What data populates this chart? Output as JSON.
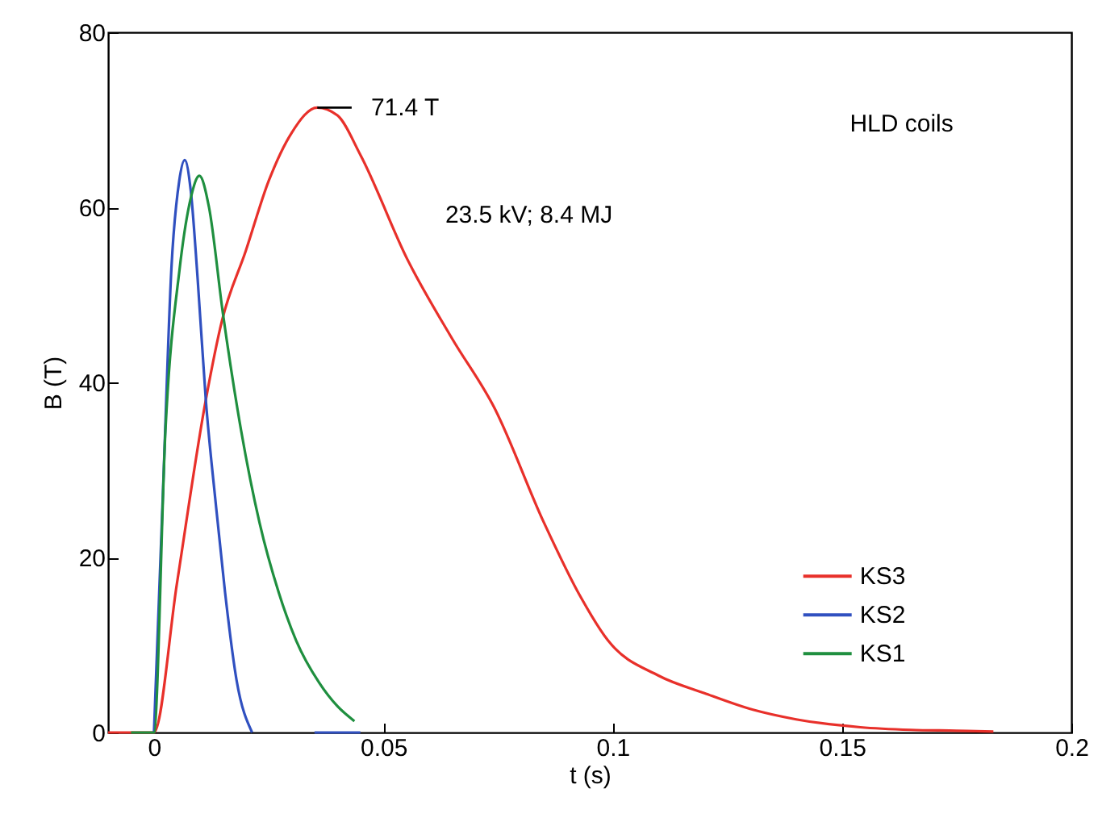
{
  "chart_data": {
    "type": "line",
    "xlabel": "t (s)",
    "ylabel": "B (T)",
    "xlim": [
      -0.01,
      0.2
    ],
    "ylim": [
      0,
      80
    ],
    "xticks": [
      0,
      0.05,
      0.1,
      0.15,
      0.2
    ],
    "yticks": [
      0,
      20,
      40,
      60,
      80
    ],
    "legend": "bottom right",
    "marker": "none",
    "line_style": "solid",
    "annotations": [
      {
        "text": "71.4 T",
        "x": 0.0356,
        "y": 71.4
      },
      "HLD coils",
      "23.5 kV; 8.4 MJ"
    ],
    "series": [
      {
        "name": "KS3",
        "color": "#e8302a",
        "x": [
          -0.01,
          0,
          0.005,
          0.0113,
          0.0148,
          0.02,
          0.025,
          0.03,
          0.0356,
          0.04,
          0.045,
          0.0553,
          0.065,
          0.0743,
          0.085,
          0.093,
          0.099,
          0.11,
          0.12,
          0.1306,
          0.14,
          0.154,
          0.165,
          0.175,
          0.183
        ],
        "values": [
          0,
          0,
          17,
          38,
          47,
          55,
          63,
          68.5,
          71.4,
          70.5,
          66,
          54,
          45,
          37,
          24,
          15.5,
          10.5,
          6.5,
          4.5,
          2.6,
          1.5,
          0.6,
          0.3,
          0.2,
          0.1
        ]
      },
      {
        "name": "KS2",
        "color": "#3050c0",
        "x": [
          0,
          0.002,
          0.0038,
          0.0055,
          0.0067,
          0.008,
          0.0095,
          0.0113,
          0.0135,
          0.0155,
          0.018,
          0.0214,
          null,
          0.035,
          0.045
        ],
        "values": [
          0,
          28,
          53,
          63,
          65.4,
          62,
          52,
          38,
          26,
          16,
          6,
          0,
          null,
          0,
          0
        ]
      },
      {
        "name": "KS1",
        "color": "#1f8f3f",
        "x": [
          -0.005,
          0,
          0.0025,
          0.0056,
          0.008,
          0.0099,
          0.012,
          0.015,
          0.019,
          0.023,
          0.0272,
          0.031,
          0.036,
          0.04,
          0.0437
        ],
        "values": [
          0,
          0,
          34.5,
          53,
          61,
          63.6,
          60,
          48,
          34.5,
          24,
          16,
          10.5,
          5.7,
          3,
          1.3
        ]
      }
    ]
  }
}
